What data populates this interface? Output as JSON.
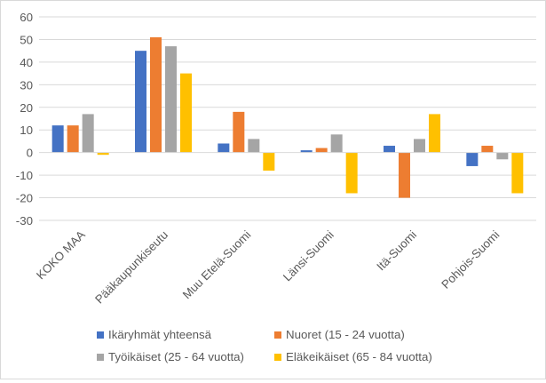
{
  "chart_data": {
    "type": "bar",
    "title": "",
    "xlabel": "",
    "ylabel": "",
    "ylim": [
      -30,
      60
    ],
    "yticks": [
      -30,
      -20,
      -10,
      0,
      10,
      20,
      30,
      40,
      50,
      60
    ],
    "grid": true,
    "legend_position": "bottom",
    "categories": [
      "KOKO MAA",
      "Pääkaupunkiseutu",
      "Muu Etelä-Suomi",
      "Länsi-Suomi",
      "Itä-Suomi",
      "Pohjois-Suomi"
    ],
    "series": [
      {
        "name": "Ikäryhmät yhteensä",
        "color": "#4472C4",
        "values": [
          12,
          45,
          4,
          1,
          3,
          -6
        ]
      },
      {
        "name": "Nuoret (15 - 24 vuotta)",
        "color": "#ED7D31",
        "values": [
          12,
          51,
          18,
          2,
          -20,
          3
        ]
      },
      {
        "name": "Työikäiset (25 - 64 vuotta)",
        "color": "#A5A5A5",
        "values": [
          17,
          47,
          6,
          8,
          6,
          -3
        ]
      },
      {
        "name": "Eläkeikäiset (65 - 84 vuotta)",
        "color": "#FFC000",
        "values": [
          -1,
          35,
          -8,
          -18,
          17,
          -18
        ]
      }
    ]
  }
}
